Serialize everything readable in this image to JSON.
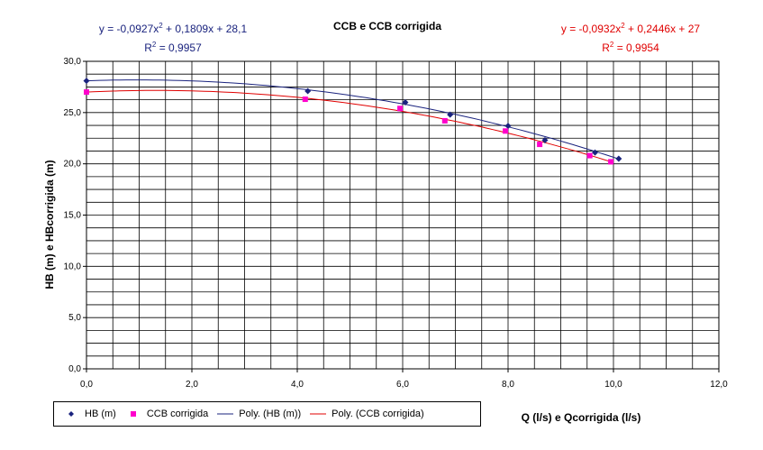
{
  "title": "CCB e CCB corrigida",
  "equations": {
    "hb": {
      "line1_pre": "y = -0,0927x",
      "line1_mid": " + 0,1809x + 28,1",
      "r2_val": " = 0,9957",
      "color": "#1a237e"
    },
    "ccb": {
      "line1_pre": "y = -0,0932x",
      "line1_mid": " + 0,2446x + 27",
      "r2_val": " = 0,9954",
      "color": "#e00000"
    },
    "sup": "2",
    "r_label": "R"
  },
  "legend": {
    "hb_label": "HB (m)",
    "ccb_label": "CCB corrigida",
    "poly_hb_label": "Poly. (HB (m))",
    "poly_ccb_label": "Poly. (CCB corrigida)"
  },
  "chart_data": {
    "type": "scatter",
    "title": "CCB e CCB corrigida",
    "xlabel": "Q (l/s) e Qcorrigida (l/s)",
    "ylabel": "HB (m) e HBcorrigida (m)",
    "xlim": [
      0,
      12
    ],
    "ylim": [
      0,
      30
    ],
    "x_ticks": [
      "0,0",
      "2,0",
      "4,0",
      "6,0",
      "8,0",
      "10,0",
      "12,0"
    ],
    "y_ticks": [
      "0,0",
      "5,0",
      "10,0",
      "15,0",
      "20,0",
      "25,0",
      "30,0"
    ],
    "grid": true,
    "legend_position": "bottom-left",
    "series": [
      {
        "name": "HB (m)",
        "marker": "diamond",
        "color": "#1a237e",
        "points": [
          [
            0.0,
            28.1
          ],
          [
            4.2,
            27.1
          ],
          [
            6.05,
            26.0
          ],
          [
            6.9,
            24.8
          ],
          [
            8.0,
            23.7
          ],
          [
            8.7,
            22.3
          ],
          [
            9.65,
            21.1
          ],
          [
            10.1,
            20.5
          ]
        ]
      },
      {
        "name": "CCB corrigida",
        "marker": "square",
        "color": "#ff00cc",
        "points": [
          [
            0.0,
            27.0
          ],
          [
            4.15,
            26.3
          ],
          [
            5.95,
            25.4
          ],
          [
            6.8,
            24.2
          ],
          [
            7.95,
            23.2
          ],
          [
            8.6,
            21.9
          ],
          [
            9.55,
            20.8
          ],
          [
            9.95,
            20.2
          ]
        ]
      }
    ],
    "trendlines": [
      {
        "name": "Poly. (HB (m))",
        "coeffs": [
          -0.0927,
          0.1809,
          28.1
        ],
        "r2": 0.9957,
        "x_range": [
          0,
          10.1
        ],
        "color": "#1a237e"
      },
      {
        "name": "Poly. (CCB corrigida)",
        "coeffs": [
          -0.0932,
          0.2446,
          27
        ],
        "r2": 0.9954,
        "x_range": [
          0,
          9.95
        ],
        "color": "#e00000"
      }
    ]
  }
}
